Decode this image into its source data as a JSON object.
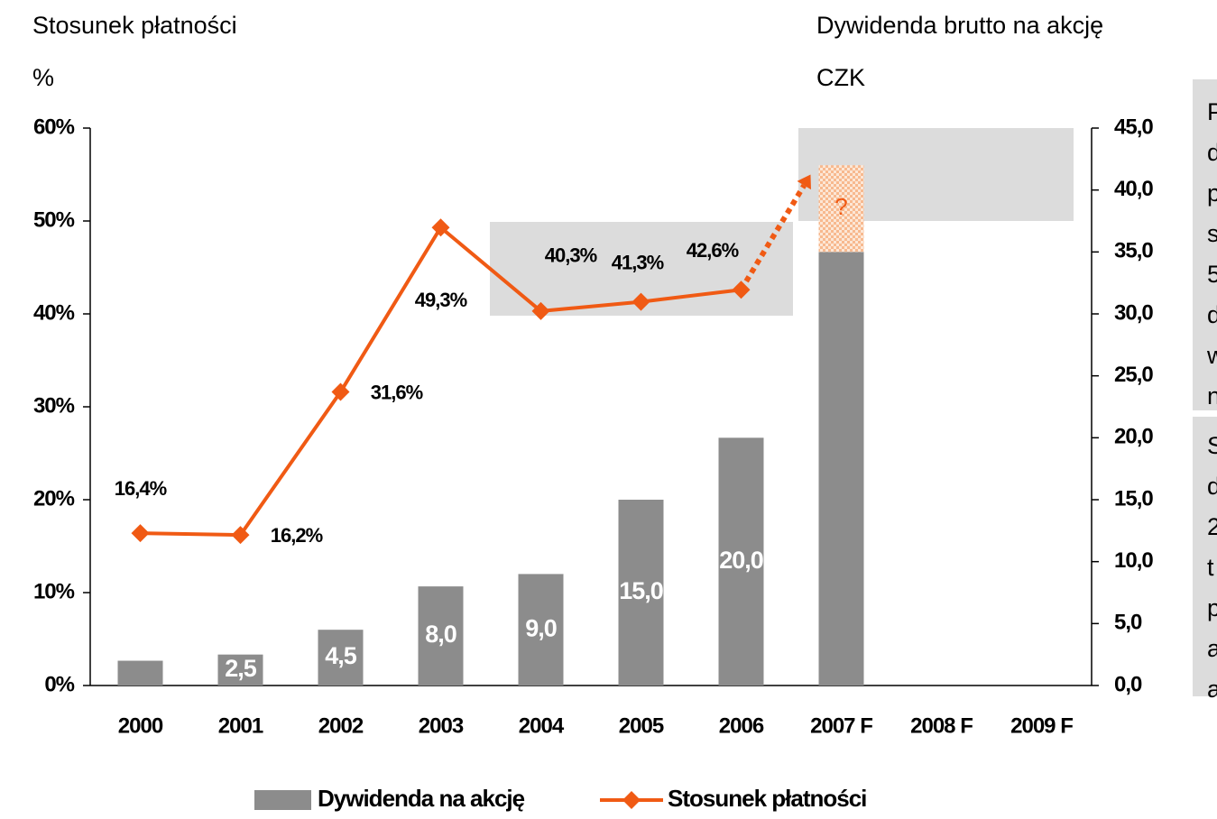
{
  "chart_data": {
    "type": "bar-line",
    "y_title": "Stosunek płatności",
    "y_unit": "%",
    "y2_title": "Dywidenda brutto na akcję",
    "y2_unit": "CZK",
    "categories": [
      "2000",
      "2001",
      "2002",
      "2003",
      "2004",
      "2005",
      "2006",
      "2007 F",
      "2008 F",
      "2009 F"
    ],
    "series": [
      {
        "name": "Dywidenda na akcję",
        "type": "bar",
        "axis": "y2",
        "color": "#8c8c8c",
        "values": [
          2.0,
          2.5,
          4.5,
          8.0,
          9.0,
          15.0,
          20.0,
          35.0,
          null,
          null
        ],
        "value_labels": [
          null,
          "2,5",
          "4,5",
          "8,0",
          "9,0",
          "15,0",
          "20,0",
          null,
          null,
          null
        ]
      },
      {
        "name": "Stosunek płatności",
        "type": "line",
        "axis": "y",
        "color": "#f05a14",
        "values": [
          16.4,
          16.2,
          31.6,
          49.3,
          40.3,
          41.3,
          42.6,
          null,
          null,
          null
        ],
        "value_labels": [
          "16,4%",
          "16,2%",
          "31,6%",
          "49,3%",
          "40,3%",
          "41,3%",
          "42,6%",
          null,
          null,
          null
        ]
      }
    ],
    "forecast": {
      "label": "?",
      "dividend_upper": [
        null,
        null,
        null,
        null,
        null,
        null,
        null,
        42.0,
        null,
        null
      ],
      "payout": [
        null,
        null,
        null,
        null,
        null,
        null,
        null,
        55.0,
        null,
        null
      ]
    },
    "ylim": [
      0,
      60
    ],
    "yticks": [
      {
        "value": 0,
        "label": "0%"
      },
      {
        "value": 10,
        "label": "10%"
      },
      {
        "value": 20,
        "label": "20%"
      },
      {
        "value": 30,
        "label": "30%"
      },
      {
        "value": 40,
        "label": "40%"
      },
      {
        "value": 50,
        "label": "50%"
      },
      {
        "value": 60,
        "label": "60%"
      }
    ],
    "y2lim": [
      0,
      45
    ],
    "y2ticks": [
      {
        "value": 0,
        "label": "0,0"
      },
      {
        "value": 5,
        "label": "5,0"
      },
      {
        "value": 10,
        "label": "10,0"
      },
      {
        "value": 15,
        "label": "15,0"
      },
      {
        "value": 20,
        "label": "20,0"
      },
      {
        "value": 25,
        "label": "25,0"
      },
      {
        "value": 30,
        "label": "30,0"
      },
      {
        "value": 35,
        "label": "35,0"
      },
      {
        "value": 40,
        "label": "40,0"
      },
      {
        "value": 45,
        "label": "45,0"
      }
    ],
    "legend": "bottom",
    "notes": [
      [
        "P",
        "d",
        "p",
        "s",
        "5",
        "d",
        "w",
        "n"
      ],
      [
        "S",
        "d",
        "2",
        "t",
        "p",
        "a",
        "a"
      ]
    ]
  }
}
